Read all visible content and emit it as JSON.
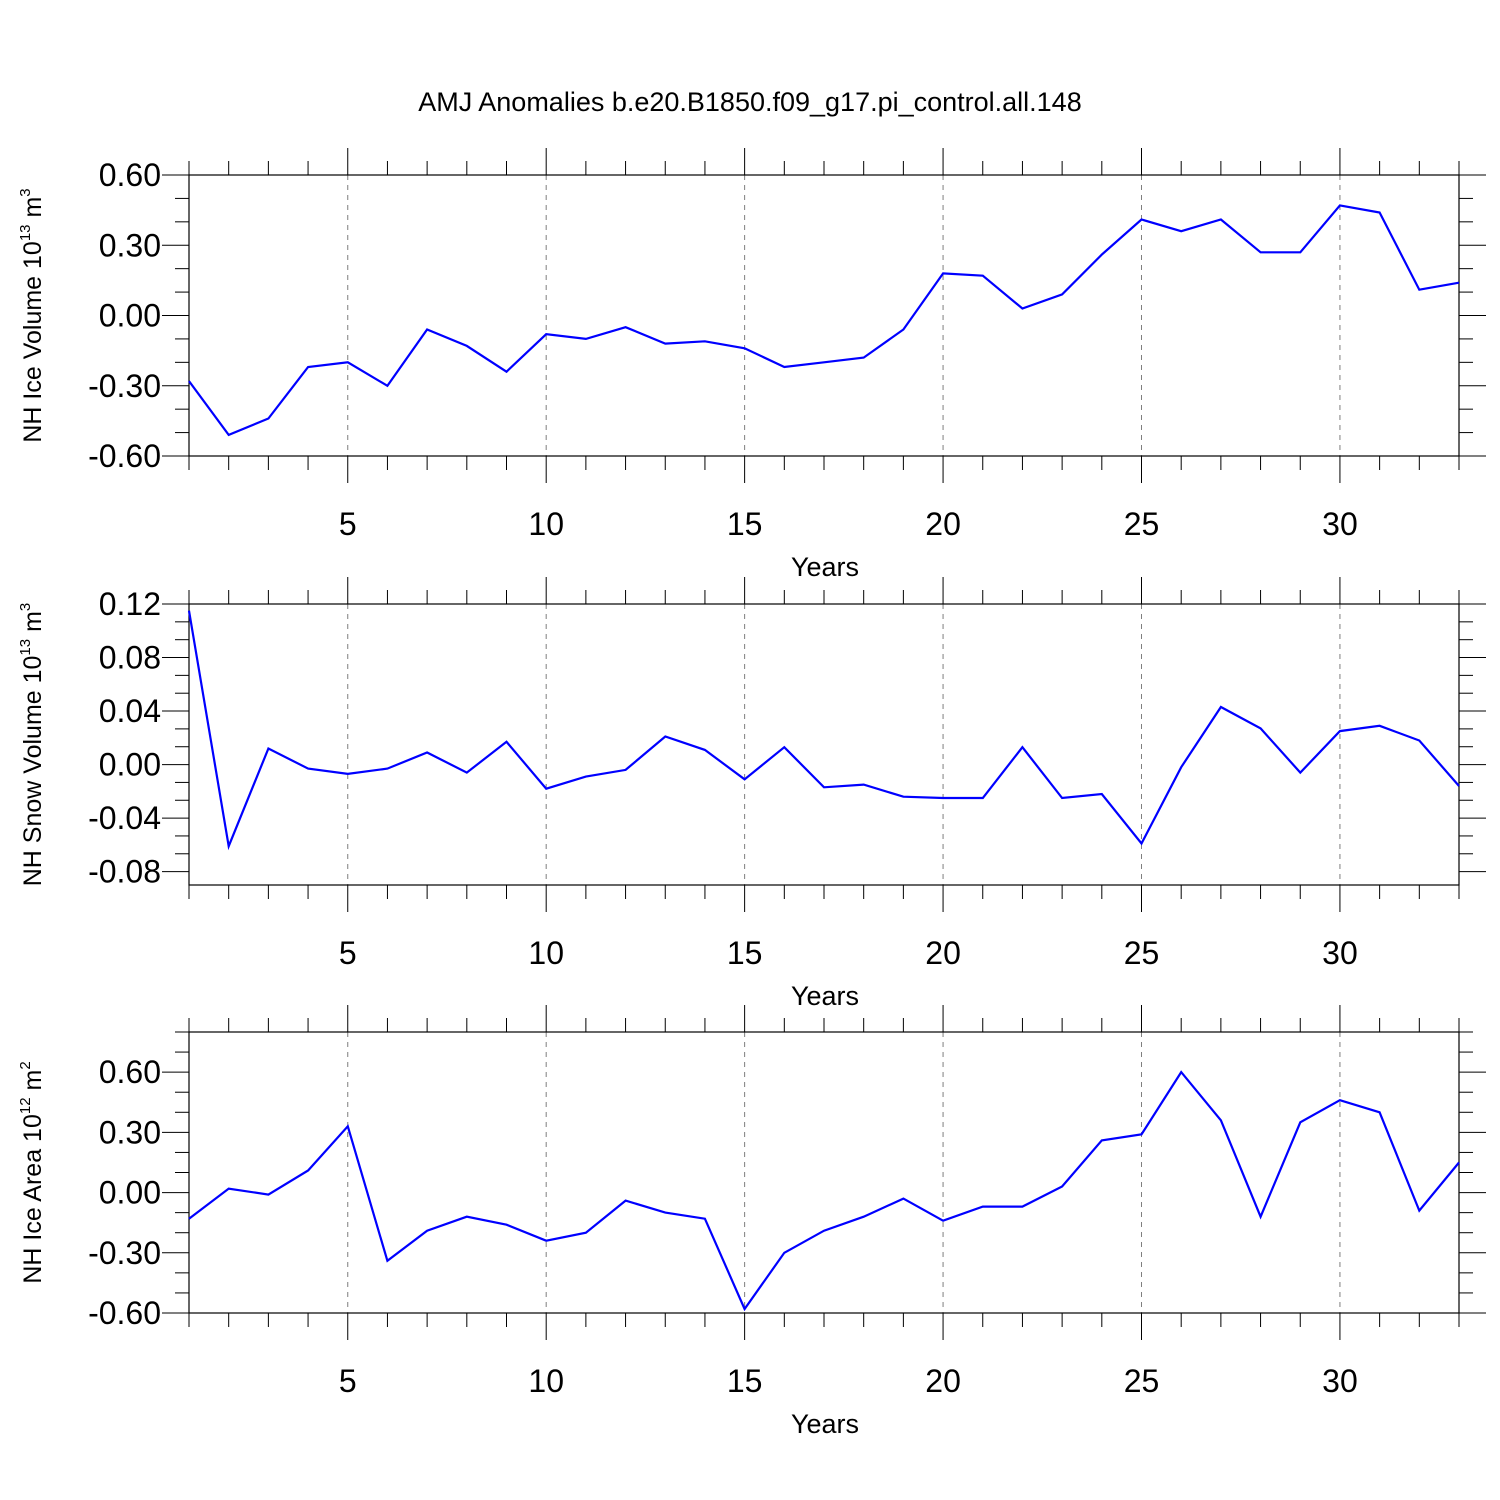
{
  "title": "AMJ Anomalies b.e20.B1850.f09_g17.pi_control.all.148",
  "colors": {
    "line": "#0000ff",
    "axis": "#000000",
    "grid": "#7f7f7f"
  },
  "chart_data": [
    {
      "type": "line",
      "xlabel": "Years",
      "ylabel": {
        "base": "NH Ice Volume 10",
        "exp": "13",
        "unit": "m",
        "unit_exp": "3"
      },
      "xlim": [
        1,
        33
      ],
      "ylim": [
        -0.6,
        0.6
      ],
      "grid": true,
      "x_ticks": [
        5,
        10,
        15,
        20,
        25,
        30
      ],
      "x_tick_labels": [
        "5",
        "10",
        "15",
        "20",
        "25",
        "30"
      ],
      "y_ticks": [
        -0.6,
        -0.3,
        0.0,
        0.3,
        0.6
      ],
      "y_tick_labels": [
        "-0.60",
        "-0.30",
        "0.00",
        "0.30",
        "0.60"
      ],
      "x": [
        1,
        2,
        3,
        4,
        5,
        6,
        7,
        8,
        9,
        10,
        11,
        12,
        13,
        14,
        15,
        16,
        17,
        18,
        19,
        20,
        21,
        22,
        23,
        24,
        25,
        26,
        27,
        28,
        29,
        30,
        31,
        32,
        33
      ],
      "values": [
        -0.28,
        -0.51,
        -0.44,
        -0.22,
        -0.2,
        -0.3,
        -0.06,
        -0.13,
        -0.24,
        -0.08,
        -0.1,
        -0.05,
        -0.12,
        -0.11,
        -0.14,
        -0.22,
        -0.2,
        -0.18,
        -0.06,
        0.18,
        0.17,
        0.03,
        0.09,
        0.26,
        0.41,
        0.36,
        0.41,
        0.27,
        0.27,
        0.47,
        0.44,
        0.11,
        0.14
      ]
    },
    {
      "type": "line",
      "xlabel": "Years",
      "ylabel": {
        "base": "NH Snow Volume 10",
        "exp": "13",
        "unit": "m",
        "unit_exp": "3"
      },
      "xlim": [
        1,
        33
      ],
      "ylim": [
        -0.09,
        0.12
      ],
      "grid": true,
      "x_ticks": [
        5,
        10,
        15,
        20,
        25,
        30
      ],
      "x_tick_labels": [
        "5",
        "10",
        "15",
        "20",
        "25",
        "30"
      ],
      "y_ticks": [
        -0.08,
        -0.04,
        0.0,
        0.04,
        0.08,
        0.12
      ],
      "y_tick_labels": [
        "-0.08",
        "-0.04",
        "0.00",
        "0.04",
        "0.08",
        "0.12"
      ],
      "x": [
        1,
        2,
        3,
        4,
        5,
        6,
        7,
        8,
        9,
        10,
        11,
        12,
        13,
        14,
        15,
        16,
        17,
        18,
        19,
        20,
        21,
        22,
        23,
        24,
        25,
        26,
        27,
        28,
        29,
        30,
        31,
        32,
        33
      ],
      "values": [
        0.115,
        -0.061,
        0.012,
        -0.003,
        -0.007,
        -0.003,
        0.009,
        -0.006,
        0.017,
        -0.018,
        -0.009,
        -0.004,
        0.021,
        0.011,
        -0.011,
        0.013,
        -0.017,
        -0.015,
        -0.024,
        -0.025,
        -0.025,
        0.013,
        -0.025,
        -0.022,
        -0.059,
        -0.002,
        0.043,
        0.027,
        -0.006,
        0.025,
        0.029,
        0.018,
        -0.016
      ]
    },
    {
      "type": "line",
      "xlabel": "Years",
      "ylabel": {
        "base": "NH Ice Area 10",
        "exp": "12",
        "unit": "m",
        "unit_exp": "2"
      },
      "xlim": [
        1,
        33
      ],
      "ylim": [
        -0.6,
        0.8
      ],
      "grid": true,
      "x_ticks": [
        5,
        10,
        15,
        20,
        25,
        30
      ],
      "x_tick_labels": [
        "5",
        "10",
        "15",
        "20",
        "25",
        "30"
      ],
      "y_ticks": [
        -0.6,
        -0.3,
        0.0,
        0.3,
        0.6
      ],
      "y_tick_labels": [
        "-0.60",
        "-0.30",
        "0.00",
        "0.30",
        "0.60"
      ],
      "x": [
        1,
        2,
        3,
        4,
        5,
        6,
        7,
        8,
        9,
        10,
        11,
        12,
        13,
        14,
        15,
        16,
        17,
        18,
        19,
        20,
        21,
        22,
        23,
        24,
        25,
        26,
        27,
        28,
        29,
        30,
        31,
        32,
        33
      ],
      "values": [
        -0.13,
        0.02,
        -0.01,
        0.11,
        0.33,
        -0.34,
        -0.19,
        -0.12,
        -0.16,
        -0.24,
        -0.2,
        -0.04,
        -0.1,
        -0.13,
        -0.58,
        -0.3,
        -0.19,
        -0.12,
        -0.03,
        -0.14,
        -0.07,
        -0.07,
        0.03,
        0.26,
        0.29,
        0.6,
        0.36,
        -0.12,
        0.35,
        0.46,
        0.4,
        -0.09,
        0.15
      ]
    }
  ]
}
